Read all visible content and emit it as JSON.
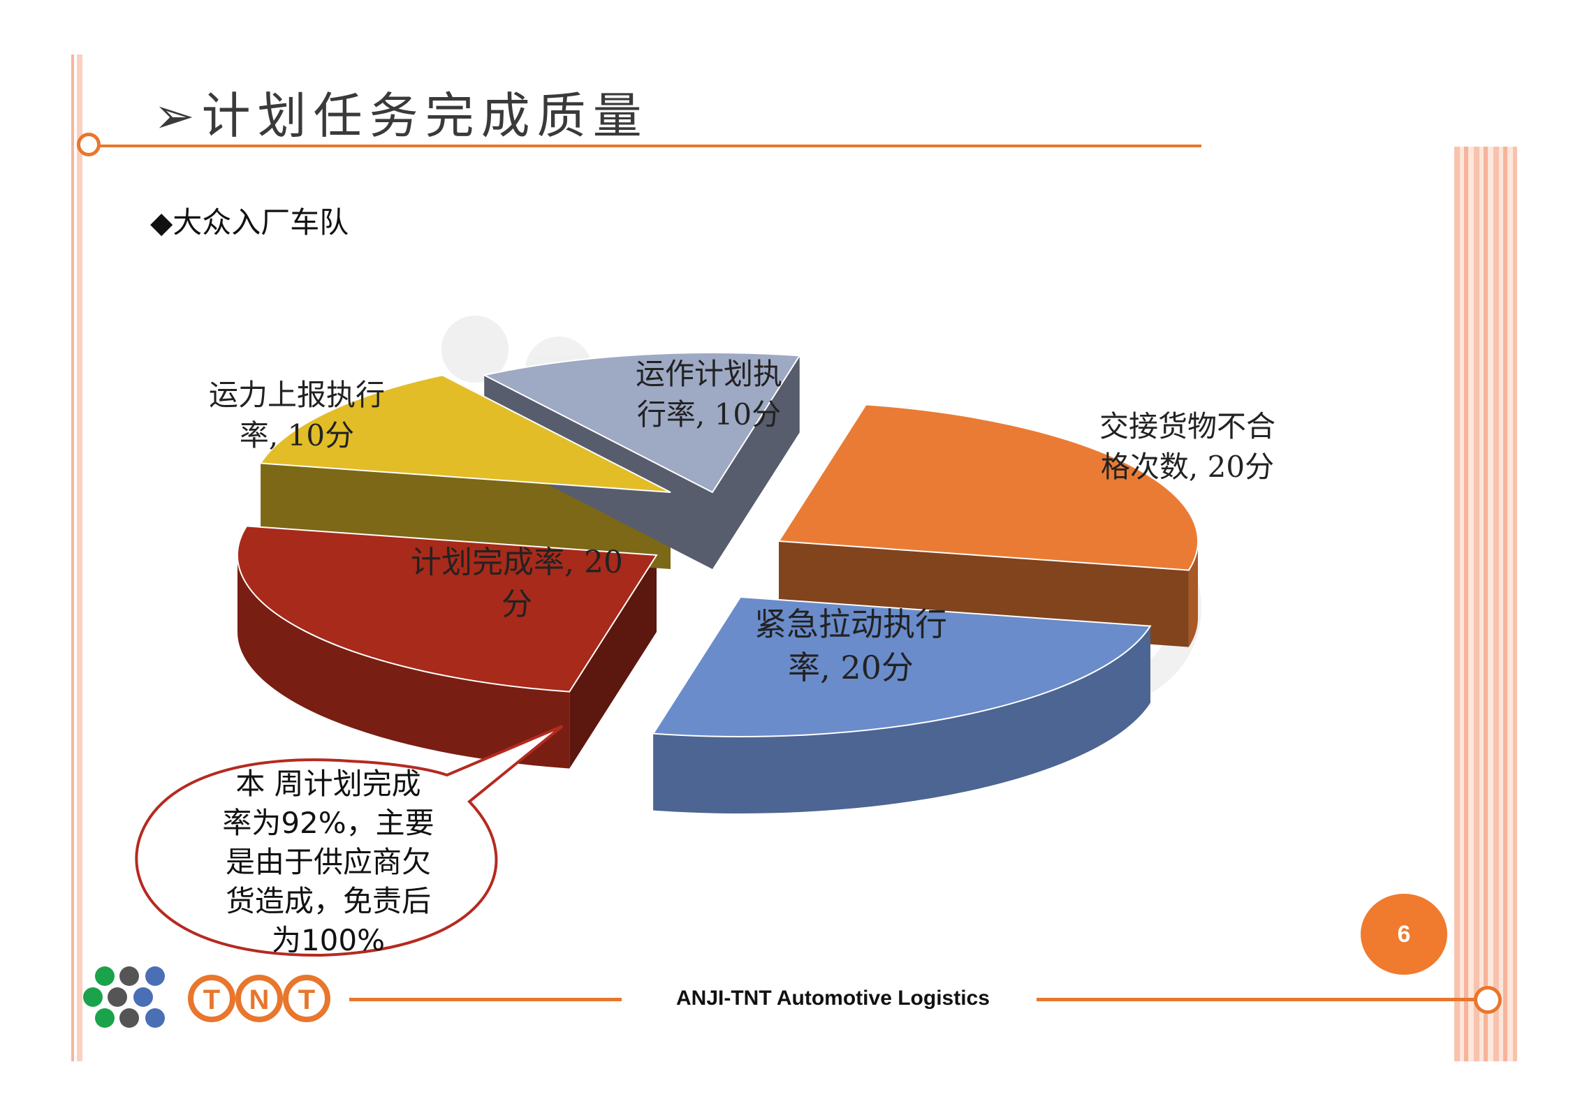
{
  "slide": {
    "title": "➢计划任务完成质量",
    "subtitle": "◆大众入厂车队",
    "page_number": "6",
    "footer_text": "ANJI-TNT Automotive Logistics",
    "logo_text": "TNT"
  },
  "callout": {
    "lines": [
      "本 周计划完成",
      "率为92%，主要",
      "是由于供应商欠",
      "货造成，免责后",
      "为100%"
    ]
  },
  "chart_data": {
    "type": "pie",
    "three_d": true,
    "title": "",
    "slices": [
      {
        "label_lines": [
          "交接货物不合",
          "格次数, 20分"
        ],
        "value": 20,
        "color": "#ea7b35"
      },
      {
        "label_lines": [
          "紧急拉动执行",
          "率, 20分"
        ],
        "value": 20,
        "color": "#6a8ccb"
      },
      {
        "label_lines": [
          "计划完成率, 20",
          "分"
        ],
        "value": 20,
        "color": "#a82a1a"
      },
      {
        "label_lines": [
          "运力上报执行",
          "率, 10分"
        ],
        "value": 10,
        "color": "#e2bd28"
      },
      {
        "label_lines": [
          "运作计划执",
          "行率, 10分"
        ],
        "value": 10,
        "color": "#9ea9c4"
      }
    ],
    "legend": "none"
  }
}
